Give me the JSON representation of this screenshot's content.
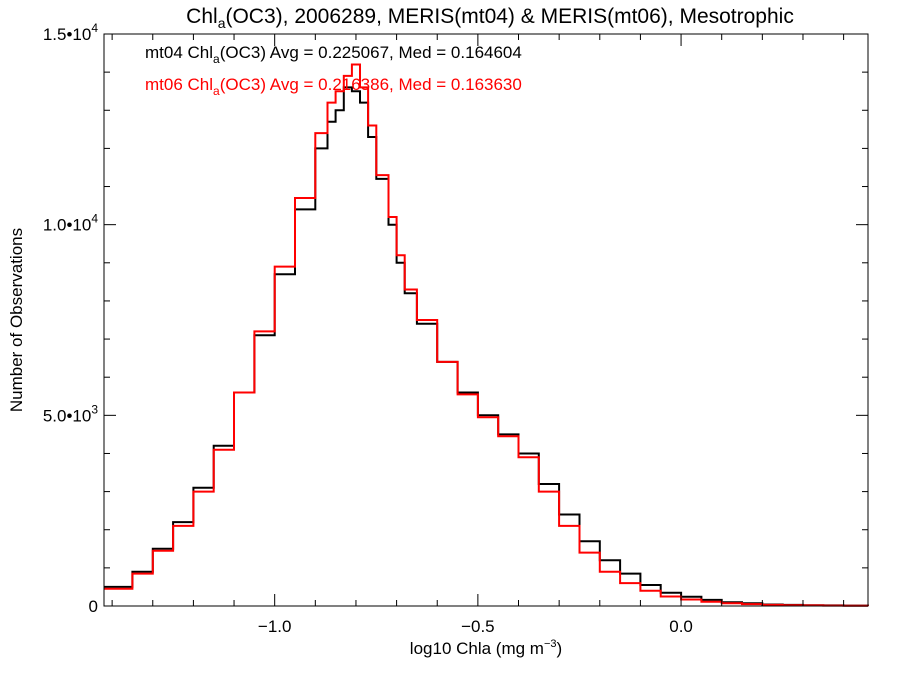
{
  "chart_data": {
    "type": "line",
    "title": {
      "pre": "Chl",
      "sub": "a",
      "post": "(OC3), 2006289, MERIS(mt04) & MERIS(mt06), Mesotrophic"
    },
    "xlabel": {
      "pre": "log10 Chla (mg m",
      "sup": "−3",
      "post": ")"
    },
    "ylabel": "Number of Observations",
    "xlim": [
      -1.42,
      0.46
    ],
    "ylim": [
      0,
      15000
    ],
    "x_ticks": [
      {
        "value": -1.0,
        "label": "−1.0"
      },
      {
        "value": -0.5,
        "label": "−0.5"
      },
      {
        "value": 0.0,
        "label": "0.0"
      }
    ],
    "y_ticks": [
      {
        "value": 0,
        "mantissa": "0",
        "exp": ""
      },
      {
        "value": 5000,
        "mantissa": "5.0•10",
        "exp": "3"
      },
      {
        "value": 10000,
        "mantissa": "1.0•10",
        "exp": "4"
      },
      {
        "value": 15000,
        "mantissa": "1.5•10",
        "exp": "4"
      }
    ],
    "legend": [
      {
        "pre": "mt04 Chl",
        "sub": "a",
        "post": "(OC3) Avg = 0.225067, Med = 0.164604",
        "color": "#000000"
      },
      {
        "pre": "mt06 Chl",
        "sub": "a",
        "post": "(OC3) Avg = 0.216386, Med = 0.163630",
        "color": "#ff0000"
      }
    ],
    "series": [
      {
        "color": "#000000",
        "step": true,
        "x": [
          -1.42,
          -1.35,
          -1.3,
          -1.25,
          -1.2,
          -1.15,
          -1.1,
          -1.05,
          -1.0,
          -0.95,
          -0.9,
          -0.87,
          -0.85,
          -0.83,
          -0.81,
          -0.79,
          -0.77,
          -0.75,
          -0.72,
          -0.7,
          -0.68,
          -0.65,
          -0.6,
          -0.55,
          -0.5,
          -0.45,
          -0.4,
          -0.35,
          -0.3,
          -0.25,
          -0.2,
          -0.15,
          -0.1,
          -0.05,
          0.0,
          0.05,
          0.1,
          0.15,
          0.2,
          0.25,
          0.3,
          0.35,
          0.4,
          0.46
        ],
        "values": [
          500,
          900,
          1500,
          2200,
          3100,
          4200,
          5600,
          7100,
          8700,
          10400,
          12000,
          12700,
          13000,
          13600,
          13500,
          13200,
          12300,
          11200,
          10000,
          9000,
          8200,
          7400,
          6400,
          5600,
          5000,
          4500,
          4000,
          3200,
          2400,
          1700,
          1200,
          850,
          550,
          350,
          240,
          160,
          100,
          70,
          40,
          30,
          20,
          15,
          10,
          5
        ]
      },
      {
        "color": "#ff0000",
        "step": true,
        "x": [
          -1.42,
          -1.35,
          -1.3,
          -1.25,
          -1.2,
          -1.15,
          -1.1,
          -1.05,
          -1.0,
          -0.95,
          -0.9,
          -0.87,
          -0.85,
          -0.83,
          -0.81,
          -0.79,
          -0.77,
          -0.75,
          -0.72,
          -0.7,
          -0.68,
          -0.65,
          -0.6,
          -0.55,
          -0.5,
          -0.45,
          -0.4,
          -0.35,
          -0.3,
          -0.25,
          -0.2,
          -0.15,
          -0.1,
          -0.05,
          0.0,
          0.05,
          0.1,
          0.15,
          0.2,
          0.25,
          0.3,
          0.35,
          0.4,
          0.46
        ],
        "values": [
          450,
          850,
          1450,
          2100,
          3000,
          4100,
          5600,
          7200,
          8900,
          10700,
          12400,
          13200,
          13500,
          13900,
          14200,
          13600,
          12600,
          11300,
          10200,
          9200,
          8300,
          7500,
          6400,
          5550,
          4950,
          4450,
          3900,
          3000,
          2100,
          1400,
          900,
          600,
          400,
          250,
          170,
          110,
          70,
          50,
          30,
          20,
          15,
          10,
          5,
          3
        ]
      }
    ]
  }
}
